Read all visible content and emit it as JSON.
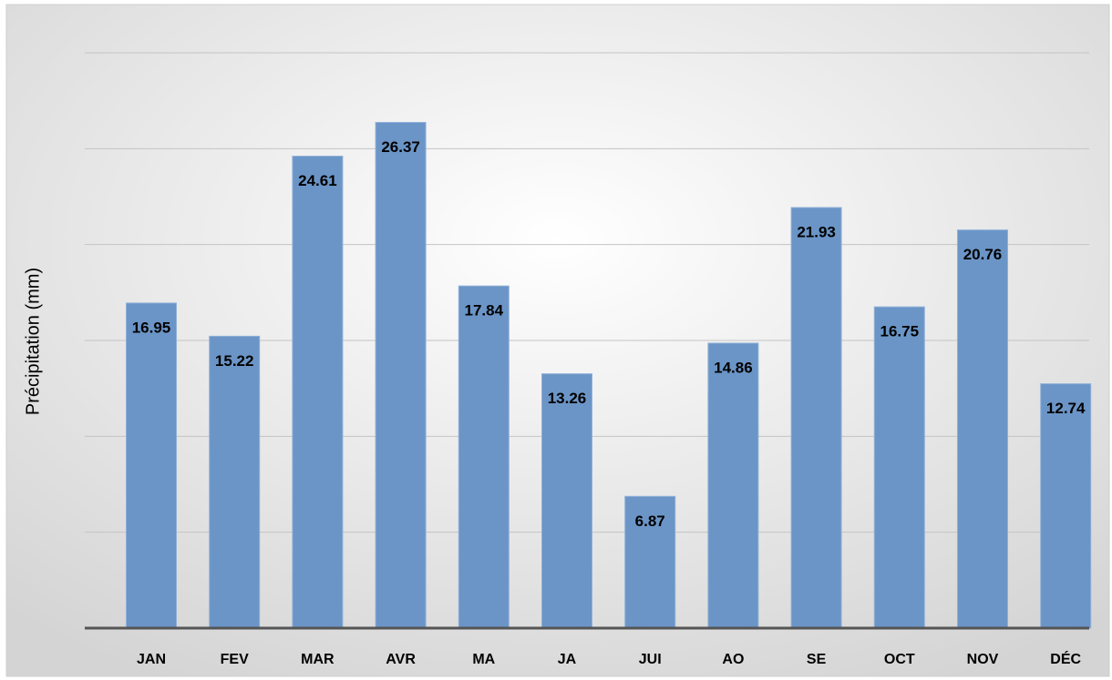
{
  "chart_data": {
    "type": "bar",
    "y_axis_label": "Précipitation (mm)",
    "categories": [
      "JAN",
      "FEV",
      "MAR",
      "AVR",
      "MA",
      "JA",
      "JUI",
      "AO",
      "SE",
      "OCT",
      "NOV",
      "DÉC"
    ],
    "values": [
      16.95,
      15.22,
      24.61,
      26.37,
      17.84,
      13.26,
      6.87,
      14.86,
      21.93,
      16.75,
      20.76,
      12.74
    ],
    "color": "#6b95c7",
    "ylim": [
      0,
      30
    ],
    "yticks": [
      0,
      5,
      10,
      15,
      20,
      25,
      30
    ],
    "grid": true
  }
}
